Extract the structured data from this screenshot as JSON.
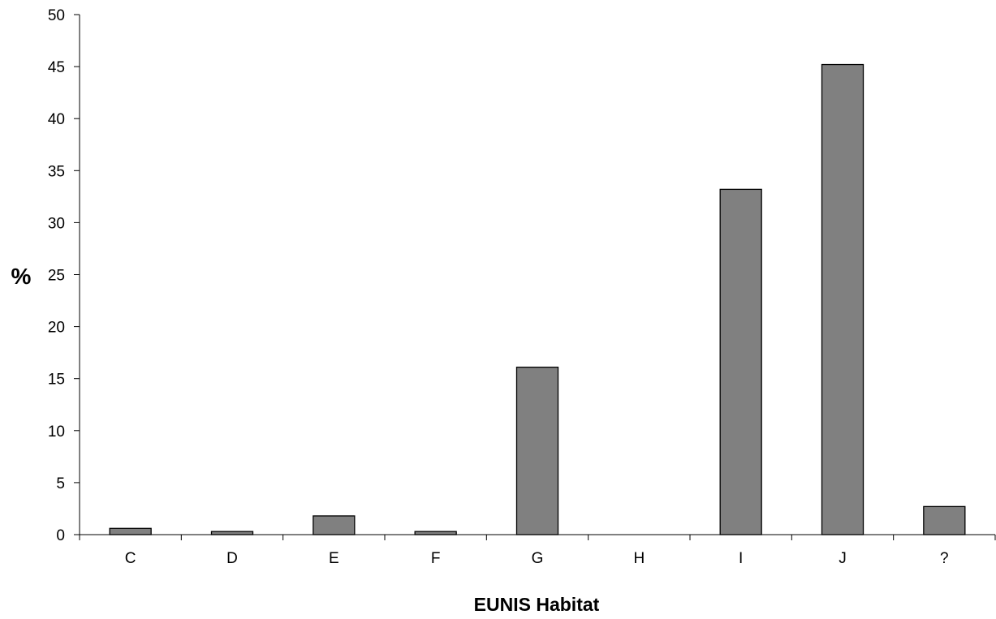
{
  "chart_data": {
    "type": "bar",
    "categories": [
      "C",
      "D",
      "E",
      "F",
      "G",
      "H",
      "I",
      "J",
      "?"
    ],
    "values": [
      0.6,
      0.3,
      1.8,
      0.3,
      16.1,
      0.0,
      33.2,
      45.2,
      2.7
    ],
    "xlabel": "EUNIS Habitat",
    "ylabel": "%",
    "ylim": [
      0,
      50
    ],
    "yticks": [
      "0",
      "5",
      "10",
      "15",
      "20",
      "25",
      "30",
      "35",
      "40",
      "45",
      "50"
    ],
    "grid": false,
    "bar_color": "#808080",
    "bar_edge_color": "#000000"
  }
}
